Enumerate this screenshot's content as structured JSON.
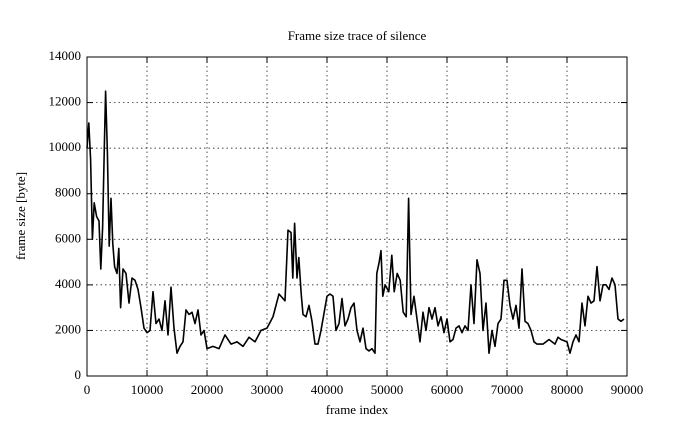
{
  "chart_data": {
    "type": "line",
    "title": "Frame size trace of silence",
    "x_label": "frame index",
    "y_label": "frame size [byte]",
    "xlim": [
      0,
      90000
    ],
    "xticks": [
      0,
      10000,
      20000,
      30000,
      40000,
      50000,
      60000,
      70000,
      80000,
      90000
    ],
    "ylim": [
      0,
      14000
    ],
    "yticks": [
      0,
      2000,
      4000,
      6000,
      8000,
      10000,
      12000,
      14000
    ],
    "grid": true,
    "series": [
      {
        "color": "#000000",
        "x": [
          0,
          300,
          600,
          900,
          1200,
          1600,
          2000,
          2300,
          2600,
          2900,
          3100,
          3400,
          3700,
          4000,
          4300,
          4600,
          5000,
          5300,
          5600,
          6000,
          6500,
          7000,
          7500,
          8000,
          8500,
          9000,
          9500,
          10000,
          10500,
          11000,
          11500,
          12000,
          12500,
          13000,
          13500,
          14000,
          14500,
          15000,
          15500,
          16000,
          16500,
          17000,
          17500,
          18000,
          18500,
          19000,
          19500,
          20000,
          21000,
          22000,
          23000,
          24000,
          25000,
          26000,
          27000,
          28000,
          29000,
          30000,
          31000,
          32000,
          33000,
          33500,
          34000,
          34300,
          34600,
          35000,
          35300,
          35700,
          36000,
          36500,
          37000,
          37500,
          38000,
          38500,
          39000,
          40000,
          40500,
          41000,
          41500,
          42000,
          42500,
          43000,
          43500,
          44000,
          44500,
          45000,
          45500,
          46000,
          46500,
          47000,
          47500,
          48000,
          48300,
          48700,
          49000,
          49300,
          49700,
          50300,
          50800,
          51200,
          51700,
          52200,
          52700,
          53200,
          53600,
          54000,
          54500,
          55000,
          55500,
          56000,
          56500,
          57000,
          57500,
          58000,
          58500,
          59000,
          59500,
          60000,
          60500,
          61000,
          61500,
          62000,
          62500,
          63000,
          63500,
          64000,
          64500,
          65000,
          65500,
          66000,
          66500,
          67000,
          67500,
          68000,
          68500,
          69000,
          69500,
          70000,
          70500,
          71000,
          71500,
          72000,
          72500,
          73000,
          73500,
          74000,
          74500,
          75000,
          76000,
          77000,
          78000,
          78500,
          79000,
          80000,
          80500,
          81000,
          81500,
          82000,
          82500,
          83000,
          83500,
          84000,
          84500,
          85000,
          85500,
          86000,
          86500,
          87000,
          87500,
          88000,
          88500,
          89000,
          89500
        ],
        "values": [
          10000,
          11100,
          9500,
          6000,
          7600,
          7000,
          6800,
          4700,
          6500,
          10200,
          12500,
          9800,
          5700,
          7800,
          5800,
          4800,
          4500,
          5600,
          3000,
          4700,
          4500,
          3200,
          4300,
          4200,
          3800,
          3000,
          2100,
          1900,
          2000,
          3700,
          2300,
          2500,
          2000,
          3300,
          1800,
          3900,
          2100,
          1000,
          1300,
          1500,
          2900,
          2700,
          2800,
          2300,
          2900,
          1800,
          2000,
          1200,
          1300,
          1200,
          1800,
          1400,
          1500,
          1300,
          1700,
          1500,
          2000,
          2100,
          2600,
          3600,
          3300,
          6400,
          6300,
          4300,
          6700,
          4300,
          5200,
          3600,
          2700,
          2600,
          3100,
          2400,
          1400,
          1400,
          2000,
          3500,
          3600,
          3500,
          2000,
          2300,
          3400,
          2200,
          2500,
          3000,
          3200,
          2000,
          1500,
          2100,
          1200,
          1100,
          1200,
          1000,
          4500,
          5000,
          5500,
          3500,
          4000,
          3700,
          5300,
          3700,
          4500,
          4200,
          2800,
          2600,
          7800,
          2700,
          3500,
          2500,
          1500,
          2800,
          2000,
          3000,
          2500,
          3000,
          2200,
          2600,
          1900,
          2500,
          1500,
          1600,
          2100,
          2200,
          1900,
          2200,
          2000,
          4000,
          2300,
          5100,
          4500,
          2000,
          3200,
          1000,
          2000,
          1300,
          2300,
          2500,
          4200,
          4200,
          3100,
          2500,
          3100,
          2100,
          4700,
          2400,
          2300,
          2000,
          1500,
          1400,
          1400,
          1600,
          1400,
          1700,
          1600,
          1500,
          1000,
          1500,
          1800,
          1500,
          3200,
          2200,
          3500,
          3200,
          3300,
          4800,
          3300,
          4000,
          4000,
          3800,
          4300,
          4000,
          2500,
          2400,
          2500
        ]
      }
    ]
  }
}
